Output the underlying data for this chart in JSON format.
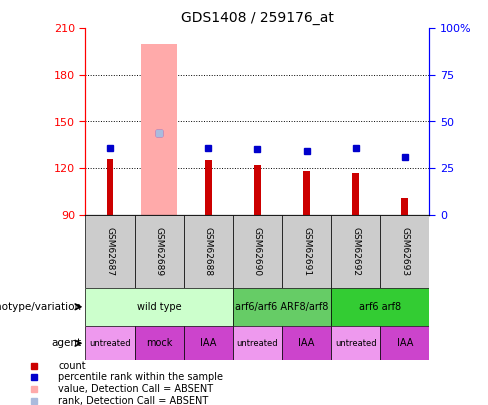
{
  "title": "GDS1408 / 259176_at",
  "samples": [
    "GSM62687",
    "GSM62689",
    "GSM62688",
    "GSM62690",
    "GSM62691",
    "GSM62692",
    "GSM62693"
  ],
  "count_values": [
    126,
    90,
    125,
    122,
    118,
    117,
    101
  ],
  "pct_values_right": [
    36,
    44,
    36,
    35,
    34,
    36,
    31
  ],
  "absent_bar_sample": 1,
  "absent_bar_value": 200,
  "absent_rank_pct": 44,
  "ylim_left": [
    90,
    210
  ],
  "ylim_right": [
    0,
    100
  ],
  "yticks_left": [
    90,
    120,
    150,
    180,
    210
  ],
  "yticks_right": [
    0,
    25,
    50,
    75,
    100
  ],
  "ytick_labels_right": [
    "0",
    "25",
    "50",
    "75",
    "100%"
  ],
  "hgrid_lines": [
    120,
    150,
    180
  ],
  "genotype_groups": [
    {
      "label": "wild type",
      "start": 0,
      "end": 3,
      "color": "#ccffcc"
    },
    {
      "label": "arf6/arf6 ARF8/arf8",
      "start": 3,
      "end": 5,
      "color": "#66cc66"
    },
    {
      "label": "arf6 arf8",
      "start": 5,
      "end": 7,
      "color": "#33cc33"
    }
  ],
  "agent_groups": [
    {
      "label": "untreated",
      "start": 0,
      "end": 1,
      "color": "#ee99ee"
    },
    {
      "label": "mock",
      "start": 1,
      "end": 2,
      "color": "#cc44cc"
    },
    {
      "label": "IAA",
      "start": 2,
      "end": 3,
      "color": "#cc44cc"
    },
    {
      "label": "untreated",
      "start": 3,
      "end": 4,
      "color": "#ee99ee"
    },
    {
      "label": "IAA",
      "start": 4,
      "end": 5,
      "color": "#cc44cc"
    },
    {
      "label": "untreated",
      "start": 5,
      "end": 6,
      "color": "#ee99ee"
    },
    {
      "label": "IAA",
      "start": 6,
      "end": 7,
      "color": "#cc44cc"
    }
  ],
  "count_color": "#cc0000",
  "percentile_color": "#0000cc",
  "absent_bar_color": "#ffaaaa",
  "absent_rank_color": "#aabbdd",
  "count_bar_bottom": 90,
  "legend_items": [
    {
      "color": "#cc0000",
      "label": "count",
      "marker": "s"
    },
    {
      "color": "#0000cc",
      "label": "percentile rank within the sample",
      "marker": "s"
    },
    {
      "color": "#ffaaaa",
      "label": "value, Detection Call = ABSENT",
      "marker": "s"
    },
    {
      "color": "#aabbdd",
      "label": "rank, Detection Call = ABSENT",
      "marker": "s"
    }
  ]
}
